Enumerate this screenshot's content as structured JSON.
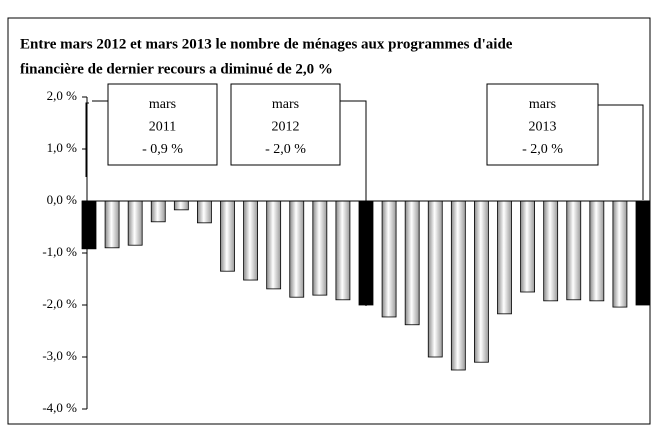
{
  "chart_data": {
    "type": "bar",
    "title": [
      "Entre mars 2012 et mars 2013 le nombre de ménages aux programmes d'aide",
      "financière de dernier recours a diminué de 2,0 %"
    ],
    "values": [
      -0.92,
      -0.9,
      -0.85,
      -0.4,
      -0.17,
      -0.42,
      -1.35,
      -1.52,
      -1.69,
      -1.85,
      -1.81,
      -1.9,
      -2.0,
      -2.23,
      -2.38,
      -3.0,
      -3.25,
      -3.1,
      -2.17,
      -1.75,
      -1.92,
      -1.9,
      -1.92,
      -2.04,
      -2.0
    ],
    "colors": [
      "#000000",
      "gradient",
      "gradient",
      "gradient",
      "gradient",
      "gradient",
      "gradient",
      "gradient",
      "gradient",
      "gradient",
      "gradient",
      "gradient",
      "#000000",
      "gradient",
      "gradient",
      "gradient",
      "gradient",
      "gradient",
      "gradient",
      "gradient",
      "gradient",
      "gradient",
      "gradient",
      "gradient",
      "#000000"
    ],
    "ylim": [
      -4,
      2
    ],
    "yticks": [
      {
        "value": 2,
        "label": "2,0 %"
      },
      {
        "value": 1,
        "label": "1,0 %"
      },
      {
        "value": 0,
        "label": "0,0 %"
      },
      {
        "value": -1,
        "label": "-1,0 %"
      },
      {
        "value": -2,
        "label": "-2,0 %"
      },
      {
        "value": -3,
        "label": "-3,0 %"
      },
      {
        "value": -4,
        "label": "-4,0 %"
      }
    ],
    "annotations": [
      [
        "mars",
        "2011",
        "- 0,9 %"
      ],
      [
        "mars",
        "2012",
        "- 2,0 %"
      ],
      [
        "mars",
        "2013",
        "- 2,0 %"
      ]
    ]
  }
}
